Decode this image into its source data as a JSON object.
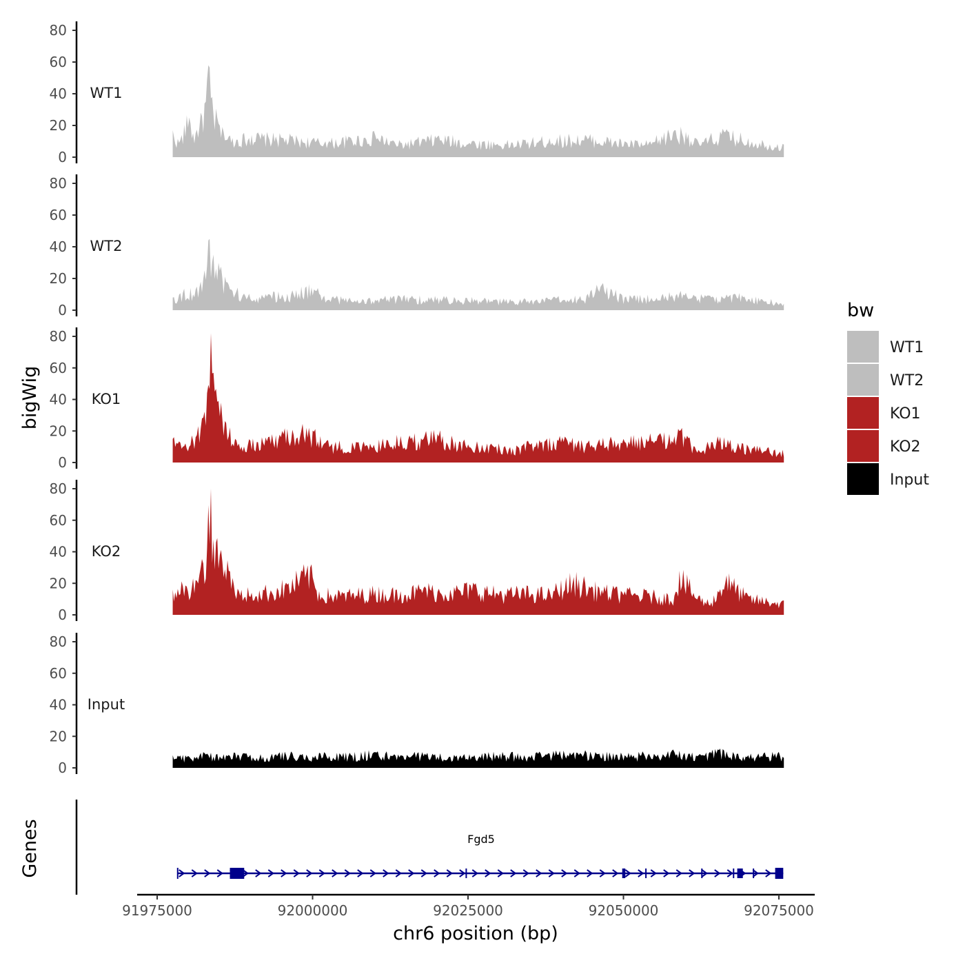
{
  "chart_data": {
    "type": "area",
    "title": "",
    "xlabel": "chr6 position (bp)",
    "ylabel": "bigWig",
    "gene_panel_label": "Genes",
    "chromosome": "chr6",
    "xlim": [
      91970000,
      92077000
    ],
    "x_region": [
      91977500,
      92075800
    ],
    "x_ticks": [
      91975000,
      92000000,
      92025000,
      92050000,
      92075000
    ],
    "x_tick_labels": [
      "91975000",
      "92000000",
      "92025000",
      "92050000",
      "92075000"
    ],
    "ylim": [
      0,
      85
    ],
    "y_ticks": [
      0,
      20,
      40,
      60,
      80
    ],
    "y_tick_labels": [
      "0",
      "20",
      "40",
      "60",
      "80"
    ],
    "legend": {
      "title": "bw",
      "entries": [
        {
          "label": "WT1",
          "color": "#bebebe"
        },
        {
          "label": "WT2",
          "color": "#bebebe"
        },
        {
          "label": "KO1",
          "color": "#b22222"
        },
        {
          "label": "KO2",
          "color": "#b22222"
        },
        {
          "label": "Input",
          "color": "#000000"
        }
      ]
    },
    "series": [
      {
        "name": "WT1",
        "color": "#bebebe",
        "x": [
          91977500,
          91978500,
          91980000,
          91981000,
          91982000,
          91982800,
          91983200,
          91983700,
          91984500,
          91985500,
          91987000,
          91990000,
          91994000,
          91998000,
          92002000,
          92006000,
          92010000,
          92014000,
          92020000,
          92026000,
          92032000,
          92038000,
          92044000,
          92050000,
          92054000,
          92058000,
          92060000,
          92062000,
          92066000,
          92070000,
          92075800
        ],
        "values": [
          17,
          9,
          25,
          15,
          28,
          35,
          58,
          38,
          25,
          16,
          12,
          14,
          13,
          12,
          10,
          12,
          14,
          9,
          13,
          10,
          9,
          12,
          13,
          10,
          9,
          17,
          16,
          9,
          16,
          12,
          7
        ]
      },
      {
        "name": "WT2",
        "color": "#bebebe",
        "x": [
          91977500,
          91979000,
          91981000,
          91982000,
          91983000,
          91983400,
          91983900,
          91985000,
          91986500,
          91989000,
          91993000,
          91996500,
          91999000,
          92003000,
          92008000,
          92014000,
          92020000,
          92026000,
          92032000,
          92038000,
          92044000,
          92046500,
          92050000,
          92056000,
          92060000,
          92064000,
          92068000,
          92072000,
          92075800
        ],
        "values": [
          8,
          11,
          13,
          18,
          28,
          45,
          35,
          25,
          16,
          9,
          10,
          10,
          15,
          8,
          7,
          8,
          8,
          7,
          6,
          7,
          9,
          16,
          8,
          9,
          11,
          8,
          10,
          7,
          5
        ]
      },
      {
        "name": "KO1",
        "color": "#b22222",
        "x": [
          91977500,
          91979000,
          91981000,
          91982200,
          91983000,
          91983600,
          91984200,
          91985100,
          91986000,
          91988000,
          91991000,
          91995000,
          91999000,
          92003000,
          92008000,
          92012000,
          92016000,
          92020000,
          92024000,
          92028000,
          92032000,
          92036000,
          92040000,
          92044000,
          92048000,
          92052000,
          92056000,
          92059000,
          92062000,
          92066000,
          92070000,
          92075800
        ],
        "values": [
          15,
          10,
          16,
          28,
          44,
          82,
          45,
          38,
          25,
          12,
          13,
          20,
          22,
          12,
          11,
          14,
          16,
          18,
          13,
          12,
          9,
          13,
          16,
          12,
          14,
          15,
          16,
          20,
          8,
          16,
          10,
          7
        ]
      },
      {
        "name": "KO2",
        "color": "#b22222",
        "x": [
          91977500,
          91979000,
          91981000,
          91982000,
          91983000,
          91983500,
          91984000,
          91985000,
          91986500,
          91988000,
          91992000,
          91996000,
          91999500,
          92001000,
          92005000,
          92010000,
          92014000,
          92018000,
          92022000,
          92026000,
          92030000,
          92034000,
          92038000,
          92042000,
          92046000,
          92050000,
          92054000,
          92058000,
          92059000,
          92062000,
          92064000,
          92066500,
          92070000,
          92075800
        ],
        "values": [
          16,
          18,
          22,
          30,
          42,
          80,
          48,
          38,
          28,
          15,
          16,
          20,
          30,
          15,
          14,
          16,
          15,
          18,
          16,
          19,
          15,
          16,
          15,
          24,
          17,
          15,
          14,
          12,
          28,
          12,
          8,
          25,
          12,
          8
        ]
      },
      {
        "name": "Input",
        "color": "#000000",
        "x": [
          91977500,
          91980000,
          91983000,
          91986000,
          91989000,
          91992000,
          91995000,
          91998000,
          92002000,
          92006000,
          92010000,
          92014000,
          92018000,
          92022000,
          92026000,
          92030000,
          92034000,
          92038000,
          92042000,
          92046000,
          92050000,
          92054000,
          92058000,
          92062000,
          92066000,
          92070000,
          92075800
        ],
        "values": [
          8,
          7,
          9,
          8,
          9,
          7,
          10,
          8,
          9,
          8,
          10,
          8,
          9,
          7,
          8,
          9,
          8,
          9,
          10,
          9,
          8,
          9,
          10,
          8,
          11,
          8,
          9
        ]
      }
    ],
    "gene": {
      "name": "Fgd5",
      "strand": "+",
      "start": 91978300,
      "end": 92075700,
      "exons": [
        {
          "start": 91986700,
          "end": 91989000,
          "type": "thick"
        },
        {
          "start": 92074400,
          "end": 92075700,
          "type": "thick"
        },
        {
          "start": 92024600,
          "end": 92024700,
          "type": "thin"
        },
        {
          "start": 92049800,
          "end": 92050300,
          "type": "thin"
        },
        {
          "start": 92053500,
          "end": 92053600,
          "type": "thin"
        },
        {
          "start": 92062500,
          "end": 92062600,
          "type": "thin"
        },
        {
          "start": 92067600,
          "end": 92067700,
          "type": "thin"
        },
        {
          "start": 92068300,
          "end": 92069200,
          "type": "thin"
        },
        {
          "start": 92070800,
          "end": 92070900,
          "type": "thin"
        }
      ],
      "strand_color": "#00008b"
    }
  }
}
